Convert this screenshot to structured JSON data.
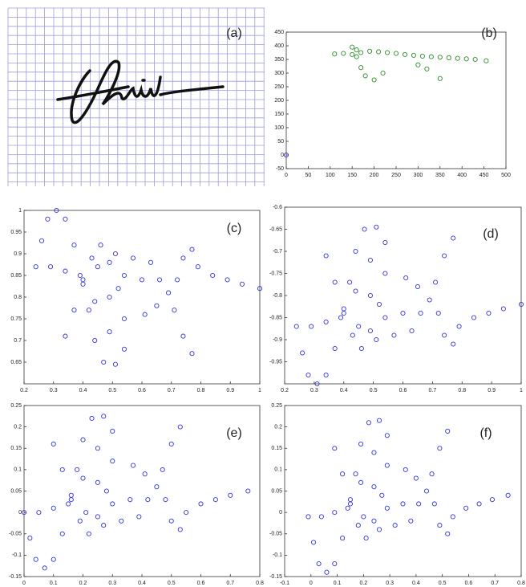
{
  "chart_data": [
    {
      "type": "image",
      "label": "(a)"
    },
    {
      "type": "scatter",
      "label": "(b)",
      "xlim": [
        0,
        500
      ],
      "xticks": [
        0,
        50,
        100,
        150,
        200,
        250,
        300,
        350,
        400,
        450,
        500
      ],
      "ylim": [
        -50,
        450
      ],
      "yticks": [
        -50,
        0,
        50,
        100,
        150,
        200,
        250,
        300,
        350,
        400,
        450
      ],
      "series": [
        {
          "color": "#2a8c2a",
          "x": [
            110,
            130,
            150,
            170,
            190,
            210,
            230,
            250,
            270,
            290,
            310,
            330,
            350,
            370,
            390,
            410,
            430,
            455,
            150,
            160,
            170,
            180,
            200,
            220,
            300,
            320,
            350,
            160
          ],
          "values": [
            370,
            372,
            368,
            375,
            380,
            378,
            375,
            372,
            368,
            365,
            362,
            360,
            358,
            356,
            354,
            352,
            350,
            345,
            395,
            360,
            320,
            290,
            275,
            300,
            330,
            315,
            280,
            385
          ]
        },
        {
          "color": "#3333dd",
          "x": [
            0
          ],
          "values": [
            0
          ]
        }
      ]
    },
    {
      "type": "scatter",
      "label": "(c)",
      "xlim": [
        0.2,
        1
      ],
      "xticks": [
        0.2,
        0.3,
        0.4,
        0.5,
        0.6,
        0.7,
        0.8,
        0.9,
        1
      ],
      "ylim": [
        0.6,
        1
      ],
      "yticks": [
        0.65,
        0.7,
        0.75,
        0.8,
        0.85,
        0.9,
        0.95,
        1
      ],
      "series": [
        {
          "color": "#3333dd",
          "x": [
            0.24,
            0.26,
            0.28,
            0.31,
            0.34,
            0.37,
            0.4,
            0.42,
            0.44,
            0.47,
            0.51,
            0.54,
            0.54,
            0.52,
            0.49,
            0.46,
            0.34,
            0.37,
            0.4,
            0.43,
            0.44,
            0.45,
            0.49,
            0.49,
            0.51,
            0.54,
            0.57,
            0.6,
            0.63,
            0.66,
            0.61,
            0.65,
            0.69,
            0.72,
            0.74,
            0.77,
            0.71,
            0.74,
            0.77,
            0.79,
            0.84,
            0.89,
            0.94,
            1.0,
            0.29,
            0.34,
            0.39
          ],
          "values": [
            0.87,
            0.93,
            0.98,
            1.0,
            0.98,
            0.92,
            0.84,
            0.77,
            0.7,
            0.65,
            0.645,
            0.68,
            0.75,
            0.82,
            0.88,
            0.92,
            0.71,
            0.77,
            0.83,
            0.89,
            0.79,
            0.87,
            0.72,
            0.8,
            0.9,
            0.85,
            0.89,
            0.84,
            0.88,
            0.84,
            0.76,
            0.78,
            0.81,
            0.84,
            0.89,
            0.91,
            0.77,
            0.71,
            0.67,
            0.87,
            0.85,
            0.84,
            0.83,
            0.82,
            0.87,
            0.86,
            0.85
          ]
        }
      ]
    },
    {
      "type": "scatter",
      "label": "(d)",
      "xlim": [
        0.2,
        1
      ],
      "xticks": [
        0.2,
        0.3,
        0.4,
        0.5,
        0.6,
        0.7,
        0.8,
        0.9,
        1
      ],
      "ylim": [
        -1,
        -0.6
      ],
      "yticks": [
        -0.95,
        -0.9,
        -0.85,
        -0.8,
        -0.75,
        -0.7,
        -0.65,
        -0.6
      ],
      "series": [
        {
          "color": "#3333dd",
          "x": [
            0.24,
            0.26,
            0.28,
            0.31,
            0.34,
            0.37,
            0.4,
            0.42,
            0.44,
            0.47,
            0.51,
            0.54,
            0.54,
            0.52,
            0.49,
            0.46,
            0.34,
            0.37,
            0.4,
            0.43,
            0.44,
            0.45,
            0.49,
            0.49,
            0.51,
            0.54,
            0.57,
            0.6,
            0.63,
            0.66,
            0.61,
            0.65,
            0.69,
            0.72,
            0.74,
            0.77,
            0.71,
            0.74,
            0.77,
            0.79,
            0.84,
            0.89,
            0.94,
            1.0,
            0.29,
            0.34,
            0.39
          ],
          "values": [
            -0.87,
            -0.93,
            -0.98,
            -1.0,
            -0.98,
            -0.92,
            -0.84,
            -0.77,
            -0.7,
            -0.65,
            -0.645,
            -0.68,
            -0.75,
            -0.82,
            -0.88,
            -0.92,
            -0.71,
            -0.77,
            -0.83,
            -0.89,
            -0.79,
            -0.87,
            -0.72,
            -0.8,
            -0.9,
            -0.85,
            -0.89,
            -0.84,
            -0.88,
            -0.84,
            -0.76,
            -0.78,
            -0.81,
            -0.84,
            -0.89,
            -0.91,
            -0.77,
            -0.71,
            -0.67,
            -0.87,
            -0.85,
            -0.84,
            -0.83,
            -0.82,
            -0.87,
            -0.86,
            -0.85
          ]
        }
      ]
    },
    {
      "type": "scatter",
      "label": "(e)",
      "xlim": [
        0,
        0.8
      ],
      "xticks": [
        0,
        0.1,
        0.2,
        0.3,
        0.4,
        0.5,
        0.6,
        0.7,
        0.8
      ],
      "ylim": [
        -0.15,
        0.25
      ],
      "yticks": [
        -0.15,
        -0.1,
        -0.05,
        0,
        0.05,
        0.1,
        0.15,
        0.2,
        0.25
      ],
      "series": [
        {
          "color": "#3333dd",
          "x": [
            0.0,
            0.02,
            0.04,
            0.07,
            0.1,
            0.13,
            0.16,
            0.18,
            0.2,
            0.23,
            0.27,
            0.3,
            0.3,
            0.28,
            0.25,
            0.22,
            0.1,
            0.13,
            0.16,
            0.19,
            0.2,
            0.21,
            0.25,
            0.25,
            0.27,
            0.3,
            0.33,
            0.36,
            0.39,
            0.42,
            0.37,
            0.41,
            0.45,
            0.48,
            0.5,
            0.53,
            0.47,
            0.5,
            0.53,
            0.55,
            0.6,
            0.65,
            0.7,
            0.76,
            0.05,
            0.1,
            0.15
          ],
          "values": [
            0.0,
            -0.06,
            -0.11,
            -0.13,
            -0.11,
            -0.05,
            0.03,
            0.1,
            0.17,
            0.22,
            0.225,
            0.19,
            0.12,
            0.05,
            -0.01,
            -0.05,
            0.16,
            0.1,
            0.04,
            -0.02,
            0.08,
            0.0,
            0.15,
            0.07,
            -0.03,
            0.02,
            -0.02,
            0.03,
            -0.01,
            0.03,
            0.11,
            0.09,
            0.06,
            0.03,
            -0.02,
            -0.04,
            0.1,
            0.16,
            0.2,
            0.0,
            0.02,
            0.03,
            0.04,
            0.05,
            0.0,
            0.01,
            0.02
          ]
        }
      ]
    },
    {
      "type": "scatter",
      "label": "(f)",
      "xlim": [
        -0.1,
        0.8
      ],
      "xticks": [
        -0.1,
        0,
        0.1,
        0.2,
        0.3,
        0.4,
        0.5,
        0.6,
        0.7,
        0.8
      ],
      "ylim": [
        -0.15,
        0.25
      ],
      "yticks": [
        -0.15,
        -0.1,
        -0.05,
        0,
        0.05,
        0.1,
        0.15,
        0.2,
        0.25
      ],
      "series": [
        {
          "color": "#3333dd",
          "x": [
            -0.01,
            0.01,
            0.03,
            0.06,
            0.09,
            0.12,
            0.15,
            0.17,
            0.19,
            0.22,
            0.26,
            0.29,
            0.29,
            0.27,
            0.24,
            0.21,
            0.09,
            0.12,
            0.15,
            0.18,
            0.19,
            0.2,
            0.24,
            0.24,
            0.26,
            0.29,
            0.32,
            0.35,
            0.38,
            0.41,
            0.36,
            0.4,
            0.44,
            0.47,
            0.49,
            0.52,
            0.46,
            0.49,
            0.52,
            0.54,
            0.59,
            0.64,
            0.69,
            0.75,
            0.04,
            0.09,
            0.14
          ],
          "values": [
            -0.01,
            -0.07,
            -0.12,
            -0.14,
            -0.12,
            -0.06,
            0.02,
            0.09,
            0.16,
            0.21,
            0.215,
            0.18,
            0.11,
            0.04,
            -0.02,
            -0.06,
            0.15,
            0.09,
            0.03,
            -0.03,
            0.07,
            -0.01,
            0.14,
            0.06,
            -0.04,
            0.01,
            -0.03,
            0.02,
            -0.02,
            0.02,
            0.1,
            0.08,
            0.05,
            0.02,
            -0.03,
            -0.05,
            0.09,
            0.15,
            0.19,
            -0.01,
            0.01,
            0.02,
            0.03,
            0.04,
            -0.01,
            0.0,
            0.01
          ]
        }
      ]
    }
  ]
}
